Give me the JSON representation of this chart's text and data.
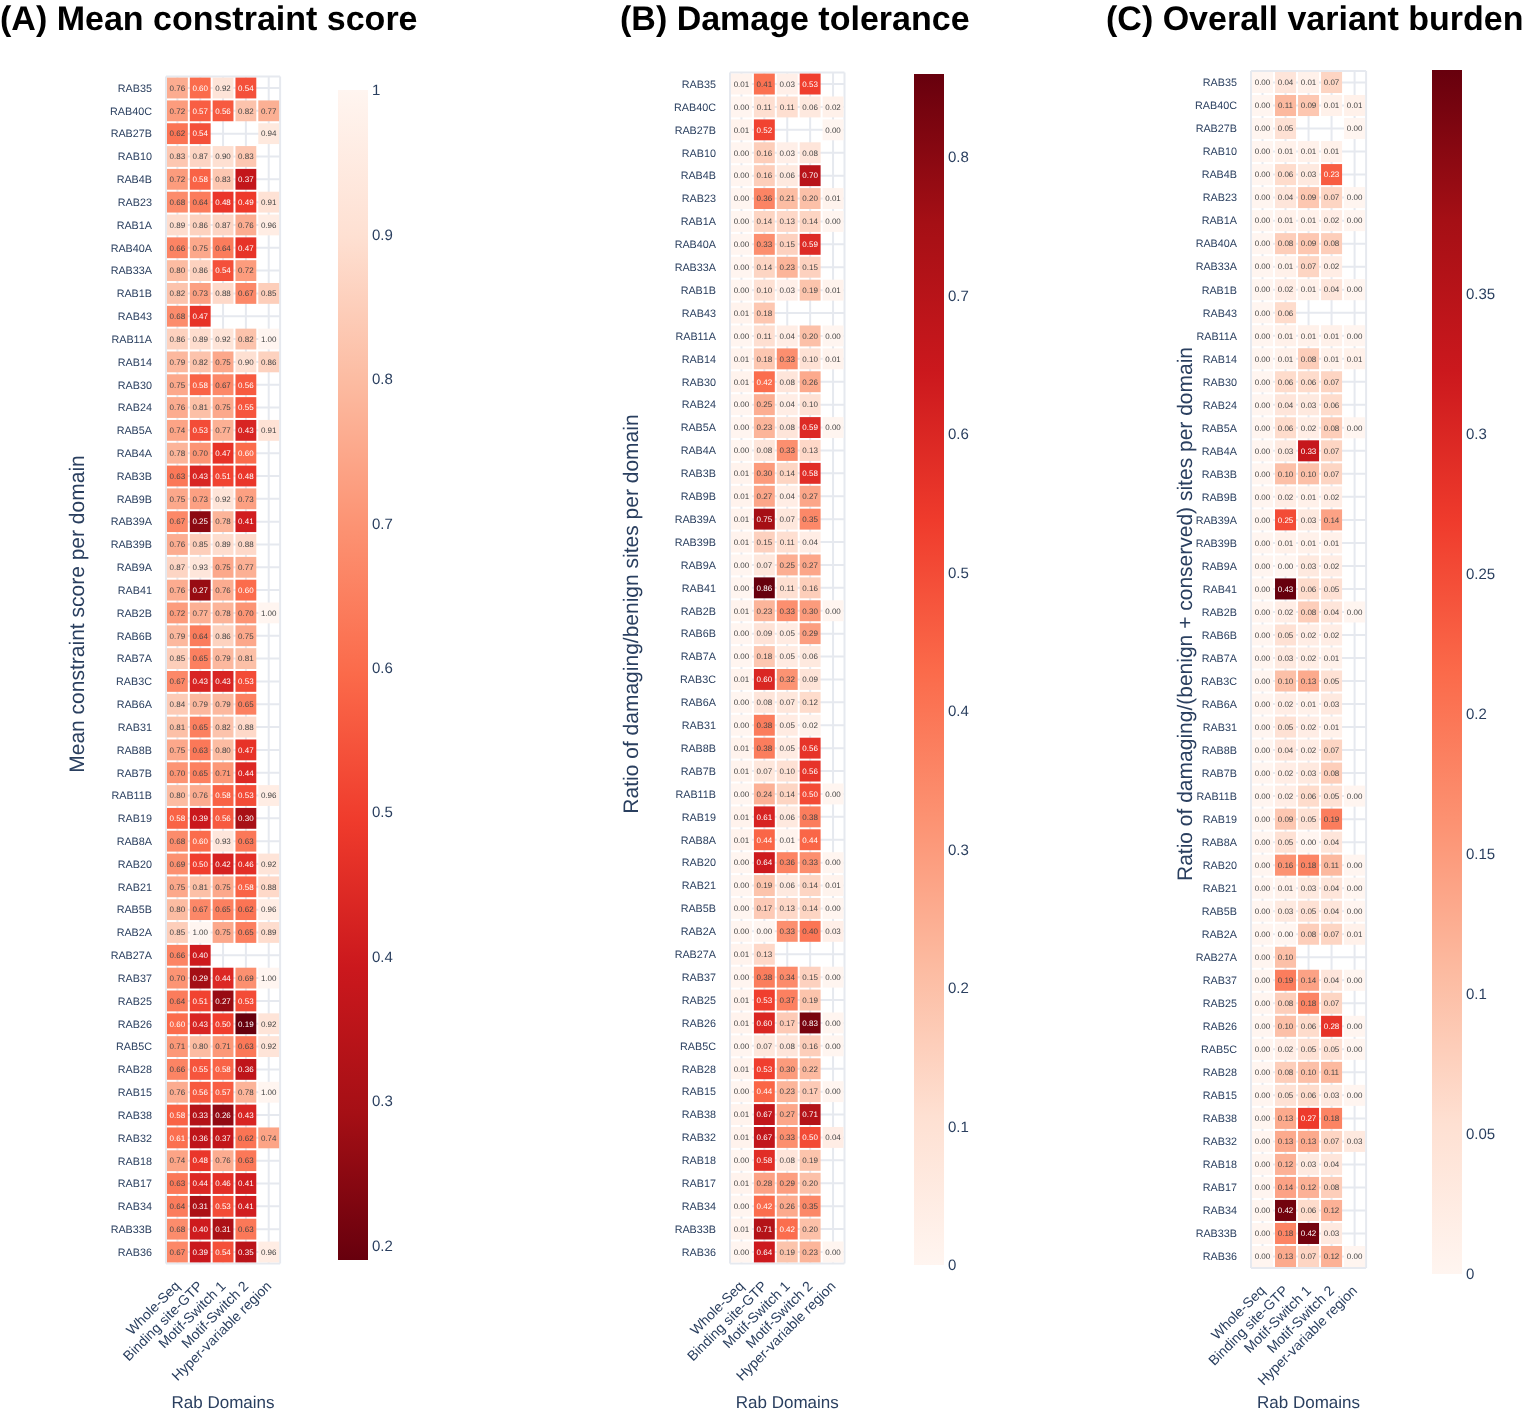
{
  "chart_data": [
    {
      "type": "heatmap",
      "title": "(A) Mean constraint score",
      "xlabel": "Rab Domains",
      "ylabel": "Mean constraint score per domain",
      "categories": [
        "Whole-Seq",
        "Binding site-GTP",
        "Motif-Switch 1",
        "Motif-Switch 2",
        "Hyper-variable region"
      ],
      "y_categories": [
        "RAB35",
        "RAB40C",
        "RAB27B",
        "RAB10",
        "RAB4B",
        "RAB23",
        "RAB1A",
        "RAB40A",
        "RAB33A",
        "RAB1B",
        "RAB43",
        "RAB11A",
        "RAB14",
        "RAB30",
        "RAB24",
        "RAB5A",
        "RAB4A",
        "RAB3B",
        "RAB9B",
        "RAB39A",
        "RAB39B",
        "RAB9A",
        "RAB41",
        "RAB2B",
        "RAB6B",
        "RAB7A",
        "RAB3C",
        "RAB6A",
        "RAB31",
        "RAB8B",
        "RAB7B",
        "RAB11B",
        "RAB19",
        "RAB8A",
        "RAB20",
        "RAB21",
        "RAB5B",
        "RAB2A",
        "RAB27A",
        "RAB37",
        "RAB25",
        "RAB26",
        "RAB5C",
        "RAB28",
        "RAB15",
        "RAB38",
        "RAB32",
        "RAB18",
        "RAB17",
        "RAB34",
        "RAB33B",
        "RAB36"
      ],
      "cells": [
        [
          0.76,
          0.6,
          0.92,
          0.54,
          null
        ],
        [
          0.72,
          0.57,
          0.56,
          0.82,
          0.77
        ],
        [
          0.62,
          0.54,
          null,
          null,
          0.94
        ],
        [
          0.83,
          0.87,
          0.9,
          0.83,
          null
        ],
        [
          0.72,
          0.58,
          0.83,
          0.37,
          null
        ],
        [
          0.68,
          0.64,
          0.48,
          0.49,
          0.91
        ],
        [
          0.89,
          0.86,
          0.87,
          0.76,
          0.96
        ],
        [
          0.66,
          0.75,
          0.64,
          0.47,
          null
        ],
        [
          0.8,
          0.86,
          0.54,
          0.72,
          null
        ],
        [
          0.82,
          0.73,
          0.88,
          0.67,
          0.85
        ],
        [
          0.68,
          0.47,
          null,
          null,
          null
        ],
        [
          0.86,
          0.89,
          0.92,
          0.82,
          1.0
        ],
        [
          0.79,
          0.82,
          0.75,
          0.9,
          0.86
        ],
        [
          0.75,
          0.58,
          0.67,
          0.56,
          null
        ],
        [
          0.76,
          0.81,
          0.75,
          0.55,
          null
        ],
        [
          0.74,
          0.53,
          0.77,
          0.43,
          0.91
        ],
        [
          0.78,
          0.7,
          0.47,
          0.6,
          null
        ],
        [
          0.63,
          0.43,
          0.51,
          0.48,
          null
        ],
        [
          0.75,
          0.73,
          0.92,
          0.73,
          null
        ],
        [
          0.67,
          0.25,
          0.78,
          0.41,
          null
        ],
        [
          0.76,
          0.85,
          0.89,
          0.88,
          null
        ],
        [
          0.87,
          0.93,
          0.75,
          0.77,
          null
        ],
        [
          0.76,
          0.27,
          0.76,
          0.6,
          null
        ],
        [
          0.72,
          0.77,
          0.78,
          0.7,
          1.0
        ],
        [
          0.79,
          0.64,
          0.86,
          0.75,
          null
        ],
        [
          0.85,
          0.65,
          0.79,
          0.81,
          null
        ],
        [
          0.67,
          0.43,
          0.43,
          0.53,
          null
        ],
        [
          0.84,
          0.79,
          0.79,
          0.65,
          null
        ],
        [
          0.81,
          0.65,
          0.82,
          0.88,
          null
        ],
        [
          0.75,
          0.63,
          0.8,
          0.47,
          null
        ],
        [
          0.7,
          0.65,
          0.71,
          0.44,
          null
        ],
        [
          0.8,
          0.76,
          0.58,
          0.53,
          0.96
        ],
        [
          0.58,
          0.39,
          0.56,
          0.3,
          null
        ],
        [
          0.68,
          0.6,
          0.93,
          0.63,
          null
        ],
        [
          0.69,
          0.5,
          0.42,
          0.46,
          0.92
        ],
        [
          0.75,
          0.81,
          0.75,
          0.58,
          0.88
        ],
        [
          0.8,
          0.67,
          0.65,
          0.62,
          0.96
        ],
        [
          0.85,
          1.0,
          0.75,
          0.65,
          0.89
        ],
        [
          0.66,
          0.4,
          null,
          null,
          null
        ],
        [
          0.7,
          0.29,
          0.44,
          0.69,
          1.0
        ],
        [
          0.64,
          0.51,
          0.27,
          0.53,
          null
        ],
        [
          0.6,
          0.43,
          0.5,
          0.19,
          0.92
        ],
        [
          0.71,
          0.8,
          0.71,
          0.63,
          0.92
        ],
        [
          0.66,
          0.55,
          0.58,
          0.36,
          null
        ],
        [
          0.76,
          0.56,
          0.57,
          0.78,
          1.0
        ],
        [
          0.58,
          0.33,
          0.26,
          0.43,
          null
        ],
        [
          0.61,
          0.36,
          0.37,
          0.62,
          0.74
        ],
        [
          0.74,
          0.48,
          0.76,
          0.63,
          null
        ],
        [
          0.63,
          0.44,
          0.46,
          0.41,
          null
        ],
        [
          0.64,
          0.31,
          0.53,
          0.41,
          null
        ],
        [
          0.68,
          0.4,
          0.31,
          0.63,
          null
        ],
        [
          0.67,
          0.39,
          0.54,
          0.35,
          0.96
        ]
      ],
      "cell_labels": [
        [
          "0.76",
          "0.60",
          "0.92",
          "0.54",
          null
        ],
        [
          "0.72",
          "0.57",
          "0.56",
          "0.82",
          "0.77"
        ],
        [
          "0.62",
          "0.54",
          null,
          null,
          "0.94"
        ],
        [
          "0.83",
          "0.87",
          "0.90",
          "0.83",
          null
        ],
        [
          "0.72",
          "0.58",
          "0.83",
          "0.37",
          null
        ],
        [
          "0.68",
          "0.64",
          "0.48",
          "0.49",
          "0.91"
        ],
        [
          "0.89",
          "0.86",
          "0.87",
          "0.76",
          "0.96"
        ],
        [
          "0.66",
          "0.75",
          "0.64",
          "0.47",
          null
        ],
        [
          "0.80",
          "0.86",
          "0.54",
          "0.72",
          null
        ],
        [
          "0.82",
          "0.73",
          "0.88",
          "0.67",
          "0.85"
        ],
        [
          "0.68",
          "0.47",
          null,
          null,
          null
        ],
        [
          "0.86",
          "0.89",
          "0.92",
          "0.82",
          "1.00"
        ],
        [
          "0.79",
          "0.82",
          "0.75",
          "0.90",
          "0.86"
        ],
        [
          "0.75",
          "0.58",
          "0.67",
          "0.56",
          null
        ],
        [
          "0.76",
          "0.81",
          "0.75",
          "0.55",
          null
        ],
        [
          "0.74",
          "0.53",
          "0.77",
          "0.43",
          "0.91"
        ],
        [
          "0.78",
          "0.70",
          "0.47",
          "0.60",
          null
        ],
        [
          "0.63",
          "0.43",
          "0.51",
          "0.48",
          null
        ],
        [
          "0.75",
          "0.73",
          "0.92",
          "0.73",
          null
        ],
        [
          "0.67",
          "0.25",
          "0.78",
          "0.41",
          null
        ],
        [
          "0.76",
          "0.85",
          "0.89",
          "0.88",
          null
        ],
        [
          "0.87",
          "0.93",
          "0.75",
          "0.77",
          null
        ],
        [
          "0.76",
          "0.27",
          "0.76",
          "0.60",
          null
        ],
        [
          "0.72",
          "0.77",
          "0.78",
          "0.70",
          "1.00"
        ],
        [
          "0.79",
          "0.64",
          "0.86",
          "0.75",
          null
        ],
        [
          "0.85",
          "0.65",
          "0.79",
          "0.81",
          null
        ],
        [
          "0.67",
          "0.43",
          "0.43",
          "0.53",
          null
        ],
        [
          "0.84",
          "0.79",
          "0.79",
          "0.65",
          null
        ],
        [
          "0.81",
          "0.65",
          "0.82",
          "0.88",
          null
        ],
        [
          "0.75",
          "0.63",
          "0.80",
          "0.47",
          null
        ],
        [
          "0.70",
          "0.65",
          "0.71",
          "0.44",
          null
        ],
        [
          "0.80",
          "0.76",
          "0.58",
          "0.53",
          "0.96"
        ],
        [
          "0.58",
          "0.39",
          "0.56",
          "0.30",
          null
        ],
        [
          "0.68",
          "0.60",
          "0.93",
          "0.63",
          null
        ],
        [
          "0.69",
          "0.50",
          "0.42",
          "0.46",
          "0.92"
        ],
        [
          "0.75",
          "0.81",
          "0.75",
          "0.58",
          "0.88"
        ],
        [
          "0.80",
          "0.67",
          "0.65",
          "0.62",
          "0.96"
        ],
        [
          "0.85",
          "1.00",
          "0.75",
          "0.65",
          "0.89"
        ],
        [
          "0.66",
          "0.40",
          null,
          null,
          null
        ],
        [
          "0.70",
          "0.29",
          "0.44",
          "0.69",
          "1.00"
        ],
        [
          "0.64",
          "0.51",
          "0.27",
          "0.53",
          null
        ],
        [
          "0.60",
          "0.43",
          "0.50",
          "0.19",
          "0.92"
        ],
        [
          "0.71",
          "0.80",
          "0.71",
          "0.63",
          "0.92"
        ],
        [
          "0.66",
          "0.55",
          "0.58",
          "0.36",
          null
        ],
        [
          "0.76",
          "0.56",
          "0.57",
          "0.78",
          "1.00"
        ],
        [
          "0.58",
          "0.33",
          "0.26",
          "0.43",
          null
        ],
        [
          "0.61",
          "0.36",
          "0.37",
          "0.62",
          "0.74"
        ],
        [
          "0.74",
          "0.48",
          "0.76",
          "0.63",
          null
        ],
        [
          "0.63",
          "0.44",
          "0.46",
          "0.41",
          null
        ],
        [
          "0.64",
          "0.31",
          "0.53",
          "0.41",
          null
        ],
        [
          "0.68",
          "0.40",
          "0.31",
          "0.63",
          null
        ],
        [
          "0.67",
          "0.39",
          "0.54",
          "0.35",
          "0.96"
        ]
      ],
      "clim": [
        0.19,
        1
      ],
      "cticks": [
        0.2,
        0.3,
        0.4,
        0.5,
        0.6,
        0.7,
        0.8,
        0.9,
        1
      ],
      "colors": [
        "#67000d",
        "#a50f15",
        "#cb181d",
        "#ef3b2c",
        "#fb6a4a",
        "#fc9272",
        "#fcbba1",
        "#fee0d2",
        "#fff5f0"
      ],
      "grid": true
    },
    {
      "type": "heatmap",
      "title": "(B) Damage tolerance",
      "xlabel": "Rab Domains",
      "ylabel": "Ratio of damaging/benign sites per domain",
      "categories": [
        "Whole-Seq",
        "Binding site-GTP",
        "Motif-Switch 1",
        "Motif-Switch 2",
        "Hyper-variable region"
      ],
      "y_categories": [
        "RAB35",
        "RAB40C",
        "RAB27B",
        "RAB10",
        "RAB4B",
        "RAB23",
        "RAB1A",
        "RAB40A",
        "RAB33A",
        "RAB1B",
        "RAB43",
        "RAB11A",
        "RAB14",
        "RAB30",
        "RAB24",
        "RAB5A",
        "RAB4A",
        "RAB3B",
        "RAB9B",
        "RAB39A",
        "RAB39B",
        "RAB9A",
        "RAB41",
        "RAB2B",
        "RAB6B",
        "RAB7A",
        "RAB3C",
        "RAB6A",
        "RAB31",
        "RAB8B",
        "RAB7B",
        "RAB11B",
        "RAB19",
        "RAB8A",
        "RAB20",
        "RAB21",
        "RAB5B",
        "RAB2A",
        "RAB27A",
        "RAB37",
        "RAB25",
        "RAB26",
        "RAB5C",
        "RAB28",
        "RAB15",
        "RAB38",
        "RAB32",
        "RAB18",
        "RAB17",
        "RAB34",
        "RAB33B",
        "RAB36"
      ],
      "cells": [
        [
          0.01,
          0.41,
          0.03,
          0.53,
          null
        ],
        [
          0.0,
          0.11,
          0.11,
          0.06,
          0.02
        ],
        [
          0.01,
          0.52,
          null,
          null,
          0.0
        ],
        [
          0.0,
          0.16,
          0.03,
          0.08,
          null
        ],
        [
          0.0,
          0.16,
          0.06,
          0.7,
          null
        ],
        [
          0.0,
          0.36,
          0.21,
          0.2,
          0.01
        ],
        [
          0.0,
          0.14,
          0.13,
          0.14,
          0.0
        ],
        [
          0.0,
          0.33,
          0.15,
          0.59,
          null
        ],
        [
          0.0,
          0.14,
          0.23,
          0.15,
          null
        ],
        [
          0.0,
          0.1,
          0.03,
          0.19,
          0.01
        ],
        [
          0.01,
          0.18,
          null,
          null,
          null
        ],
        [
          0.0,
          0.11,
          0.04,
          0.2,
          0.0
        ],
        [
          0.01,
          0.18,
          0.33,
          0.1,
          0.01
        ],
        [
          0.01,
          0.42,
          0.08,
          0.26,
          null
        ],
        [
          0.0,
          0.25,
          0.04,
          0.1,
          null
        ],
        [
          0.0,
          0.23,
          0.08,
          0.59,
          0.0
        ],
        [
          0.0,
          0.08,
          0.33,
          0.13,
          null
        ],
        [
          0.01,
          0.3,
          0.14,
          0.58,
          null
        ],
        [
          0.01,
          0.27,
          0.04,
          0.27,
          null
        ],
        [
          0.01,
          0.75,
          0.07,
          0.35,
          null
        ],
        [
          0.01,
          0.15,
          0.11,
          0.04,
          null
        ],
        [
          0.0,
          0.07,
          0.25,
          0.27,
          null
        ],
        [
          0.0,
          0.86,
          0.11,
          0.16,
          null
        ],
        [
          0.01,
          0.23,
          0.33,
          0.3,
          0.0
        ],
        [
          0.0,
          0.09,
          0.05,
          0.29,
          null
        ],
        [
          0.0,
          0.18,
          0.05,
          0.06,
          null
        ],
        [
          0.01,
          0.6,
          0.32,
          0.09,
          null
        ],
        [
          0.0,
          0.08,
          0.07,
          0.12,
          null
        ],
        [
          0.0,
          0.38,
          0.05,
          0.02,
          null
        ],
        [
          0.01,
          0.38,
          0.05,
          0.56,
          null
        ],
        [
          0.01,
          0.07,
          0.1,
          0.56,
          null
        ],
        [
          0.0,
          0.24,
          0.14,
          0.5,
          0.0
        ],
        [
          0.01,
          0.61,
          0.06,
          0.38,
          null
        ],
        [
          0.01,
          0.44,
          0.01,
          0.44,
          null
        ],
        [
          0.0,
          0.64,
          0.36,
          0.33,
          0.0
        ],
        [
          0.0,
          0.19,
          0.06,
          0.14,
          0.01
        ],
        [
          0.0,
          0.17,
          0.13,
          0.14,
          0.0
        ],
        [
          0.0,
          0.0,
          0.33,
          0.4,
          0.03
        ],
        [
          0.01,
          0.13,
          null,
          null,
          null
        ],
        [
          0.0,
          0.38,
          0.34,
          0.15,
          0.0
        ],
        [
          0.01,
          0.53,
          0.37,
          0.19,
          null
        ],
        [
          0.01,
          0.6,
          0.17,
          0.83,
          0.0
        ],
        [
          0.0,
          0.07,
          0.08,
          0.16,
          0.0
        ],
        [
          0.01,
          0.53,
          0.3,
          0.22,
          null
        ],
        [
          0.0,
          0.44,
          0.23,
          0.17,
          0.0
        ],
        [
          0.01,
          0.67,
          0.27,
          0.71,
          null
        ],
        [
          0.01,
          0.67,
          0.33,
          0.5,
          0.04
        ],
        [
          0.0,
          0.58,
          0.08,
          0.19,
          null
        ],
        [
          0.01,
          0.28,
          0.29,
          0.2,
          null
        ],
        [
          0.0,
          0.42,
          0.26,
          0.35,
          null
        ],
        [
          0.01,
          0.71,
          0.42,
          0.2,
          null
        ],
        [
          0.0,
          0.64,
          0.19,
          0.23,
          0.0
        ]
      ],
      "cell_labels": [
        [
          "0.01",
          "0.41",
          "0.03",
          "0.53",
          null
        ],
        [
          "0.00",
          "0.11",
          "0.11",
          "0.06",
          "0.02"
        ],
        [
          "0.01",
          "0.52",
          null,
          null,
          "0.00"
        ],
        [
          "0.00",
          "0.16",
          "0.03",
          "0.08",
          null
        ],
        [
          "0.00",
          "0.16",
          "0.06",
          "0.70",
          null
        ],
        [
          "0.00",
          "0.36",
          "0.21",
          "0.20",
          "0.01"
        ],
        [
          "0.00",
          "0.14",
          "0.13",
          "0.14",
          "0.00"
        ],
        [
          "0.00",
          "0.33",
          "0.15",
          "0.59",
          null
        ],
        [
          "0.00",
          "0.14",
          "0.23",
          "0.15",
          null
        ],
        [
          "0.00",
          "0.10",
          "0.03",
          "0.19",
          "0.01"
        ],
        [
          "0.01",
          "0.18",
          null,
          null,
          null
        ],
        [
          "0.00",
          "0.11",
          "0.04",
          "0.20",
          "0.00"
        ],
        [
          "0.01",
          "0.18",
          "0.33",
          "0.10",
          "0.01"
        ],
        [
          "0.01",
          "0.42",
          "0.08",
          "0.26",
          null
        ],
        [
          "0.00",
          "0.25",
          "0.04",
          "0.10",
          null
        ],
        [
          "0.00",
          "0.23",
          "0.08",
          "0.59",
          "0.00"
        ],
        [
          "0.00",
          "0.08",
          "0.33",
          "0.13",
          null
        ],
        [
          "0.01",
          "0.30",
          "0.14",
          "0.58",
          null
        ],
        [
          "0.01",
          "0.27",
          "0.04",
          "0.27",
          null
        ],
        [
          "0.01",
          "0.75",
          "0.07",
          "0.35",
          null
        ],
        [
          "0.01",
          "0.15",
          "0.11",
          "0.04",
          null
        ],
        [
          "0.00",
          "0.07",
          "0.25",
          "0.27",
          null
        ],
        [
          "0.00",
          "0.86",
          "0.11",
          "0.16",
          null
        ],
        [
          "0.01",
          "0.23",
          "0.33",
          "0.30",
          "0.00"
        ],
        [
          "0.00",
          "0.09",
          "0.05",
          "0.29",
          null
        ],
        [
          "0.00",
          "0.18",
          "0.05",
          "0.06",
          null
        ],
        [
          "0.01",
          "0.60",
          "0.32",
          "0.09",
          null
        ],
        [
          "0.00",
          "0.08",
          "0.07",
          "0.12",
          null
        ],
        [
          "0.00",
          "0.38",
          "0.05",
          "0.02",
          null
        ],
        [
          "0.01",
          "0.38",
          "0.05",
          "0.56",
          null
        ],
        [
          "0.01",
          "0.07",
          "0.10",
          "0.56",
          null
        ],
        [
          "0.00",
          "0.24",
          "0.14",
          "0.50",
          "0.00"
        ],
        [
          "0.01",
          "0.61",
          "0.06",
          "0.38",
          null
        ],
        [
          "0.01",
          "0.44",
          "0.01",
          "0.44",
          null
        ],
        [
          "0.00",
          "0.64",
          "0.36",
          "0.33",
          "0.00"
        ],
        [
          "0.00",
          "0.19",
          "0.06",
          "0.14",
          "0.01"
        ],
        [
          "0.00",
          "0.17",
          "0.13",
          "0.14",
          "0.00"
        ],
        [
          "0.00",
          "0.00",
          "0.33",
          "0.40",
          "0.03"
        ],
        [
          "0.01",
          "0.13",
          null,
          null,
          null
        ],
        [
          "0.00",
          "0.38",
          "0.34",
          "0.15",
          "0.00"
        ],
        [
          "0.01",
          "0.53",
          "0.37",
          "0.19",
          null
        ],
        [
          "0.01",
          "0.60",
          "0.17",
          "0.83",
          "0.00"
        ],
        [
          "0.00",
          "0.07",
          "0.08",
          "0.16",
          "0.00"
        ],
        [
          "0.01",
          "0.53",
          "0.30",
          "0.22",
          null
        ],
        [
          "0.00",
          "0.44",
          "0.23",
          "0.17",
          "0.00"
        ],
        [
          "0.01",
          "0.67",
          "0.27",
          "0.71",
          null
        ],
        [
          "0.01",
          "0.67",
          "0.33",
          "0.50",
          "0.04"
        ],
        [
          "0.00",
          "0.58",
          "0.08",
          "0.19",
          null
        ],
        [
          "0.01",
          "0.28",
          "0.29",
          "0.20",
          null
        ],
        [
          "0.00",
          "0.42",
          "0.26",
          "0.35",
          null
        ],
        [
          "0.01",
          "0.71",
          "0.42",
          "0.20",
          null
        ],
        [
          "0.00",
          "0.64",
          "0.19",
          "0.23",
          "0.00"
        ]
      ],
      "clim": [
        0,
        0.86
      ],
      "cticks": [
        0,
        0.1,
        0.2,
        0.3,
        0.4,
        0.5,
        0.6,
        0.7,
        0.8
      ],
      "colors": [
        "#fff5f0",
        "#fee0d2",
        "#fcbba1",
        "#fc9272",
        "#fb6a4a",
        "#ef3b2c",
        "#cb181d",
        "#a50f15",
        "#67000d"
      ],
      "grid": true
    },
    {
      "type": "heatmap",
      "title": "(C) Overall variant burden",
      "xlabel": "Rab Domains",
      "ylabel": "Ratio of damaging/(benign + conserved) sites per domain",
      "categories": [
        "Whole-Seq",
        "Binding site-GTP",
        "Motif-Switch 1",
        "Motif-Switch 2",
        "Hyper-variable region"
      ],
      "y_categories": [
        "RAB35",
        "RAB40C",
        "RAB27B",
        "RAB10",
        "RAB4B",
        "RAB23",
        "RAB1A",
        "RAB40A",
        "RAB33A",
        "RAB1B",
        "RAB43",
        "RAB11A",
        "RAB14",
        "RAB30",
        "RAB24",
        "RAB5A",
        "RAB4A",
        "RAB3B",
        "RAB9B",
        "RAB39A",
        "RAB39B",
        "RAB9A",
        "RAB41",
        "RAB2B",
        "RAB6B",
        "RAB7A",
        "RAB3C",
        "RAB6A",
        "RAB31",
        "RAB8B",
        "RAB7B",
        "RAB11B",
        "RAB19",
        "RAB8A",
        "RAB20",
        "RAB21",
        "RAB5B",
        "RAB2A",
        "RAB27A",
        "RAB37",
        "RAB25",
        "RAB26",
        "RAB5C",
        "RAB28",
        "RAB15",
        "RAB38",
        "RAB32",
        "RAB18",
        "RAB17",
        "RAB34",
        "RAB33B",
        "RAB36"
      ],
      "cells": [
        [
          0.0,
          0.04,
          0.01,
          0.07,
          null
        ],
        [
          0.0,
          0.11,
          0.09,
          0.01,
          0.01
        ],
        [
          0.0,
          0.05,
          null,
          null,
          0.0
        ],
        [
          0.0,
          0.01,
          0.01,
          0.01,
          null
        ],
        [
          0.0,
          0.06,
          0.03,
          0.23,
          null
        ],
        [
          0.0,
          0.04,
          0.09,
          0.07,
          0.0
        ],
        [
          0.0,
          0.01,
          0.01,
          0.02,
          0.0
        ],
        [
          0.0,
          0.08,
          0.09,
          0.08,
          null
        ],
        [
          0.0,
          0.01,
          0.07,
          0.02,
          null
        ],
        [
          0.0,
          0.02,
          0.01,
          0.04,
          0.0
        ],
        [
          0.0,
          0.06,
          null,
          null,
          null
        ],
        [
          0.0,
          0.01,
          0.01,
          0.01,
          0.0
        ],
        [
          0.0,
          0.01,
          0.08,
          0.01,
          0.01
        ],
        [
          0.0,
          0.06,
          0.06,
          0.07,
          null
        ],
        [
          0.0,
          0.04,
          0.03,
          0.06,
          null
        ],
        [
          0.0,
          0.06,
          0.02,
          0.08,
          0.0
        ],
        [
          0.0,
          0.03,
          0.33,
          0.07,
          null
        ],
        [
          0.0,
          0.1,
          0.1,
          0.07,
          null
        ],
        [
          0.0,
          0.02,
          0.01,
          0.02,
          null
        ],
        [
          0.0,
          0.25,
          0.03,
          0.14,
          null
        ],
        [
          0.0,
          0.01,
          0.01,
          0.01,
          null
        ],
        [
          0.0,
          0.0,
          0.03,
          0.02,
          null
        ],
        [
          0.0,
          0.43,
          0.06,
          0.05,
          null
        ],
        [
          0.0,
          0.02,
          0.08,
          0.04,
          0.0
        ],
        [
          0.0,
          0.05,
          0.02,
          0.02,
          null
        ],
        [
          0.0,
          0.03,
          0.02,
          0.01,
          null
        ],
        [
          0.0,
          0.1,
          0.13,
          0.05,
          null
        ],
        [
          0.0,
          0.02,
          0.01,
          0.03,
          null
        ],
        [
          0.0,
          0.05,
          0.02,
          0.01,
          null
        ],
        [
          0.0,
          0.04,
          0.02,
          0.07,
          null
        ],
        [
          0.0,
          0.02,
          0.03,
          0.08,
          null
        ],
        [
          0.0,
          0.02,
          0.06,
          0.05,
          0.0
        ],
        [
          0.0,
          0.09,
          0.05,
          0.19,
          null
        ],
        [
          0.0,
          0.05,
          0.0,
          0.04,
          null
        ],
        [
          0.0,
          0.16,
          0.18,
          0.11,
          0.0
        ],
        [
          0.0,
          0.01,
          0.03,
          0.04,
          0.0
        ],
        [
          0.0,
          0.03,
          0.05,
          0.04,
          0.0
        ],
        [
          0.0,
          0.0,
          0.08,
          0.07,
          0.01
        ],
        [
          0.0,
          0.1,
          null,
          null,
          null
        ],
        [
          0.0,
          0.19,
          0.14,
          0.04,
          0.0
        ],
        [
          0.0,
          0.08,
          0.18,
          0.07,
          null
        ],
        [
          0.0,
          0.1,
          0.06,
          0.28,
          0.0
        ],
        [
          0.0,
          0.02,
          0.05,
          0.05,
          0.0
        ],
        [
          0.0,
          0.08,
          0.1,
          0.11,
          null
        ],
        [
          0.0,
          0.05,
          0.06,
          0.03,
          0.0
        ],
        [
          0.0,
          0.13,
          0.27,
          0.18,
          null
        ],
        [
          0.0,
          0.13,
          0.13,
          0.07,
          0.03
        ],
        [
          0.0,
          0.12,
          0.03,
          0.04,
          null
        ],
        [
          0.0,
          0.14,
          0.12,
          0.08,
          null
        ],
        [
          0.0,
          0.42,
          0.06,
          0.12,
          null
        ],
        [
          0.0,
          0.18,
          0.42,
          0.03,
          null
        ],
        [
          0.0,
          0.13,
          0.07,
          0.12,
          0.0
        ]
      ],
      "cell_labels": [
        [
          "0.00",
          "0.04",
          "0.01",
          "0.07",
          null
        ],
        [
          "0.00",
          "0.11",
          "0.09",
          "0.01",
          "0.01"
        ],
        [
          "0.00",
          "0.05",
          null,
          null,
          "0.00"
        ],
        [
          "0.00",
          "0.01",
          "0.01",
          "0.01",
          null
        ],
        [
          "0.00",
          "0.06",
          "0.03",
          "0.23",
          null
        ],
        [
          "0.00",
          "0.04",
          "0.09",
          "0.07",
          "0.00"
        ],
        [
          "0.00",
          "0.01",
          "0.01",
          "0.02",
          "0.00"
        ],
        [
          "0.00",
          "0.08",
          "0.09",
          "0.08",
          null
        ],
        [
          "0.00",
          "0.01",
          "0.07",
          "0.02",
          null
        ],
        [
          "0.00",
          "0.02",
          "0.01",
          "0.04",
          "0.00"
        ],
        [
          "0.00",
          "0.06",
          null,
          null,
          null
        ],
        [
          "0.00",
          "0.01",
          "0.01",
          "0.01",
          "0.00"
        ],
        [
          "0.00",
          "0.01",
          "0.08",
          "0.01",
          "0.01"
        ],
        [
          "0.00",
          "0.06",
          "0.06",
          "0.07",
          null
        ],
        [
          "0.00",
          "0.04",
          "0.03",
          "0.06",
          null
        ],
        [
          "0.00",
          "0.06",
          "0.02",
          "0.08",
          "0.00"
        ],
        [
          "0.00",
          "0.03",
          "0.33",
          "0.07",
          null
        ],
        [
          "0.00",
          "0.10",
          "0.10",
          "0.07",
          null
        ],
        [
          "0.00",
          "0.02",
          "0.01",
          "0.02",
          null
        ],
        [
          "0.00",
          "0.25",
          "0.03",
          "0.14",
          null
        ],
        [
          "0.00",
          "0.01",
          "0.01",
          "0.01",
          null
        ],
        [
          "0.00",
          "0.00",
          "0.03",
          "0.02",
          null
        ],
        [
          "0.00",
          "0.43",
          "0.06",
          "0.05",
          null
        ],
        [
          "0.00",
          "0.02",
          "0.08",
          "0.04",
          "0.00"
        ],
        [
          "0.00",
          "0.05",
          "0.02",
          "0.02",
          null
        ],
        [
          "0.00",
          "0.03",
          "0.02",
          "0.01",
          null
        ],
        [
          "0.00",
          "0.10",
          "0.13",
          "0.05",
          null
        ],
        [
          "0.00",
          "0.02",
          "0.01",
          "0.03",
          null
        ],
        [
          "0.00",
          "0.05",
          "0.02",
          "0.01",
          null
        ],
        [
          "0.00",
          "0.04",
          "0.02",
          "0.07",
          null
        ],
        [
          "0.00",
          "0.02",
          "0.03",
          "0.08",
          null
        ],
        [
          "0.00",
          "0.02",
          "0.06",
          "0.05",
          "0.00"
        ],
        [
          "0.00",
          "0.09",
          "0.05",
          "0.19",
          null
        ],
        [
          "0.00",
          "0.05",
          "0.00",
          "0.04",
          null
        ],
        [
          "0.00",
          "0.16",
          "0.18",
          "0.11",
          "0.00"
        ],
        [
          "0.00",
          "0.01",
          "0.03",
          "0.04",
          "0.00"
        ],
        [
          "0.00",
          "0.03",
          "0.05",
          "0.04",
          "0.00"
        ],
        [
          "0.00",
          "0.00",
          "0.08",
          "0.07",
          "0.01"
        ],
        [
          "0.00",
          "0.10",
          null,
          null,
          null
        ],
        [
          "0.00",
          "0.19",
          "0.14",
          "0.04",
          "0.00"
        ],
        [
          "0.00",
          "0.08",
          "0.18",
          "0.07",
          null
        ],
        [
          "0.00",
          "0.10",
          "0.06",
          "0.28",
          "0.00"
        ],
        [
          "0.00",
          "0.02",
          "0.05",
          "0.05",
          "0.00"
        ],
        [
          "0.00",
          "0.08",
          "0.10",
          "0.11",
          null
        ],
        [
          "0.00",
          "0.05",
          "0.06",
          "0.03",
          "0.00"
        ],
        [
          "0.00",
          "0.13",
          "0.27",
          "0.18",
          null
        ],
        [
          "0.00",
          "0.13",
          "0.13",
          "0.07",
          "0.03"
        ],
        [
          "0.00",
          "0.12",
          "0.03",
          "0.04",
          null
        ],
        [
          "0.00",
          "0.14",
          "0.12",
          "0.08",
          null
        ],
        [
          "0.00",
          "0.42",
          "0.06",
          "0.12",
          null
        ],
        [
          "0.00",
          "0.18",
          "0.42",
          "0.03",
          null
        ],
        [
          "0.00",
          "0.13",
          "0.07",
          "0.12",
          "0.00"
        ]
      ],
      "clim": [
        0,
        0.43
      ],
      "cticks": [
        0,
        0.05,
        0.1,
        0.15,
        0.2,
        0.25,
        0.3,
        0.35
      ],
      "colors": [
        "#fff5f0",
        "#fee0d2",
        "#fcbba1",
        "#fc9272",
        "#fb6a4a",
        "#ef3b2c",
        "#cb181d",
        "#a50f15",
        "#67000d"
      ],
      "grid": true
    }
  ]
}
